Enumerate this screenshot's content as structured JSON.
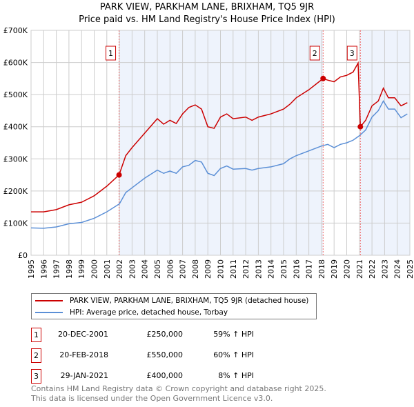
{
  "chart_data": {
    "type": "line",
    "title": "PARK VIEW, PARKHAM LANE, BRIXHAM, TQ5 9JR",
    "subtitle": "Price paid vs. HM Land Registry's House Price Index (HPI)",
    "xlim": [
      1995,
      2025
    ],
    "ylim": [
      0,
      700000
    ],
    "x_ticks": [
      "1995",
      "1996",
      "1997",
      "1998",
      "1999",
      "2000",
      "2001",
      "2002",
      "2003",
      "2004",
      "2005",
      "2006",
      "2007",
      "2008",
      "2009",
      "2010",
      "2011",
      "2012",
      "2013",
      "2014",
      "2015",
      "2016",
      "2017",
      "2018",
      "2019",
      "2020",
      "2021",
      "2022",
      "2023",
      "2024",
      "2025"
    ],
    "y_ticks": [
      {
        "v": 0,
        "label": "£0"
      },
      {
        "v": 100000,
        "label": "£100K"
      },
      {
        "v": 200000,
        "label": "£200K"
      },
      {
        "v": 300000,
        "label": "£300K"
      },
      {
        "v": 400000,
        "label": "£400K"
      },
      {
        "v": 500000,
        "label": "£500K"
      },
      {
        "v": 600000,
        "label": "£600K"
      },
      {
        "v": 700000,
        "label": "£700K"
      }
    ],
    "grid": true,
    "series": [
      {
        "name": "PARK VIEW, PARKHAM LANE, BRIXHAM, TQ5 9JR (detached house)",
        "color": "#cc0000",
        "x": [
          1995,
          1996,
          1997,
          1998,
          1999,
          2000,
          2001,
          2001.97,
          2002.5,
          2003,
          2004,
          2005,
          2005.5,
          2006,
          2006.5,
          2007,
          2007.5,
          2008,
          2008.5,
          2009,
          2009.5,
          2010,
          2010.5,
          2011,
          2012,
          2012.5,
          2013,
          2014,
          2015,
          2015.5,
          2016,
          2017,
          2018.13,
          2018.5,
          2019,
          2019.5,
          2020,
          2020.5,
          2020.9,
          2021.08,
          2021.5,
          2022,
          2022.5,
          2022.9,
          2023.3,
          2023.8,
          2024.3,
          2024.8
        ],
        "y": [
          135,
          135,
          142,
          157,
          165,
          185,
          215,
          250,
          310,
          335,
          380,
          425,
          408,
          420,
          410,
          440,
          460,
          468,
          455,
          400,
          395,
          430,
          440,
          425,
          430,
          420,
          430,
          440,
          455,
          470,
          490,
          515,
          550,
          545,
          540,
          555,
          560,
          570,
          598,
          400,
          420,
          465,
          480,
          520,
          490,
          490,
          465,
          475
        ]
      },
      {
        "name": "HPI: Average price, detached house, Torbay",
        "color": "#5b8fd6",
        "x": [
          1995,
          1996,
          1997,
          1998,
          1999,
          2000,
          2001,
          2002,
          2002.5,
          2003,
          2004,
          2005,
          2005.5,
          2006,
          2006.5,
          2007,
          2007.5,
          2008,
          2008.5,
          2009,
          2009.5,
          2010,
          2010.5,
          2011,
          2012,
          2012.5,
          2013,
          2014,
          2015,
          2015.5,
          2016,
          2017,
          2018,
          2018.5,
          2019,
          2019.5,
          2020,
          2020.5,
          2021,
          2021.5,
          2022,
          2022.5,
          2022.9,
          2023.3,
          2023.8,
          2024.3,
          2024.8
        ],
        "y": [
          85,
          84,
          88,
          98,
          102,
          115,
          135,
          160,
          195,
          210,
          240,
          265,
          255,
          262,
          255,
          275,
          280,
          295,
          290,
          255,
          248,
          270,
          278,
          268,
          270,
          265,
          270,
          275,
          285,
          300,
          310,
          325,
          340,
          345,
          335,
          345,
          350,
          358,
          372,
          390,
          430,
          450,
          480,
          455,
          455,
          428,
          440
        ]
      }
    ],
    "y_units": "thousands GBP",
    "sales": [
      {
        "n": "1",
        "x": 2001.97,
        "date": "20-DEC-2001",
        "price": "£250,000",
        "value": 250,
        "hpi": "59% ↑ HPI"
      },
      {
        "n": "2",
        "x": 2018.13,
        "date": "20-FEB-2018",
        "price": "£550,000",
        "value": 550,
        "hpi": "60% ↑ HPI"
      },
      {
        "n": "3",
        "x": 2021.08,
        "date": "29-JAN-2021",
        "price": "£400,000",
        "value": 400,
        "hpi": "8% ↑ HPI"
      }
    ]
  },
  "footer": [
    "Contains HM Land Registry data © Crown copyright and database right 2025.",
    "This data is licensed under the Open Government Licence v3.0."
  ]
}
